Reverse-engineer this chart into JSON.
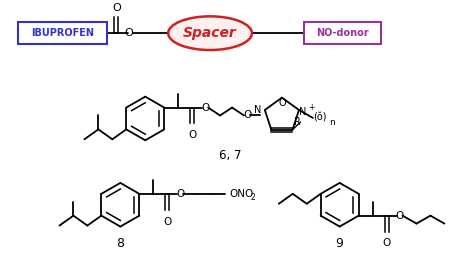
{
  "bg_color": "#ffffff",
  "figsize": [
    4.6,
    2.57
  ],
  "dpi": 100,
  "ibuprofen_text": "IBUPROFEN",
  "ibuprofen_color": "#3333cc",
  "spacer_text": "Spacer",
  "spacer_color": "#cc2222",
  "nodonor_text": "NO-donor",
  "nodonor_color": "#993399"
}
